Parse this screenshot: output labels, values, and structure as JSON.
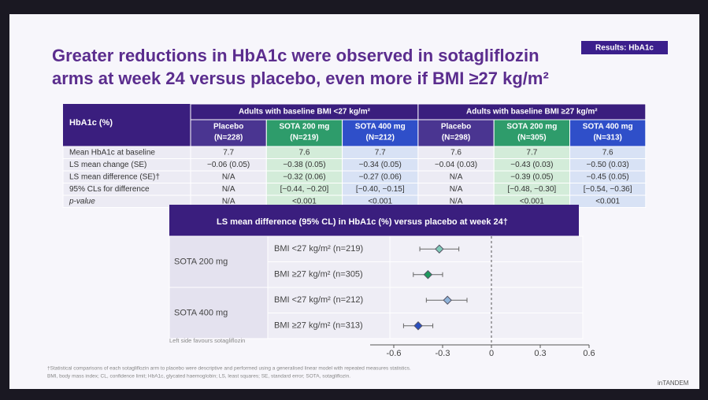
{
  "tag": "Results: HbA1c",
  "title": [
    "Greater reductions in HbA1c were observed in sotagliflozin",
    "arms at week 24 versus placebo, even more if BMI ≥27 kg/m²"
  ],
  "table": {
    "corner": "HbA1c (%)",
    "groups": [
      "Adults with baseline BMI <27 kg/m²",
      "Adults with baseline BMI ≥27 kg/m²"
    ],
    "columns": [
      [
        "Placebo",
        "(N=228)"
      ],
      [
        "SOTA 200 mg",
        "(N=219)"
      ],
      [
        "SOTA 400 mg",
        "(N=212)"
      ],
      [
        "Placebo",
        "(N=298)"
      ],
      [
        "SOTA 200 mg",
        "(N=305)"
      ],
      [
        "SOTA 400 mg",
        "(N=313)"
      ]
    ],
    "rows": [
      [
        "Mean HbA1c at baseline",
        "7.7",
        "7.6",
        "7.7",
        "7.6",
        "7.7",
        "7.6"
      ],
      [
        "LS mean change (SE)",
        "−0.06 (0.05)",
        "−0.38 (0.05)",
        "−0.34 (0.05)",
        "−0.04 (0.03)",
        "−0.43 (0.03)",
        "−0.50 (0.03)"
      ],
      [
        "LS mean difference (SE)†",
        "N/A",
        "−0.32 (0.06)",
        "−0.27 (0.06)",
        "N/A",
        "−0.39 (0.05)",
        "−0.45 (0.05)"
      ],
      [
        "95% CLs for difference",
        "N/A",
        "[−0.44, −0.20]",
        "[−0.40, −0.15]",
        "N/A",
        "[−0.48, −0.30]",
        "[−0.54, −0.36]"
      ],
      [
        "p-value",
        "N/A",
        "<0.001",
        "<0.001",
        "N/A",
        "<0.001",
        "<0.001"
      ]
    ]
  },
  "chart_data": {
    "type": "forest",
    "title": "LS mean difference (95% CL) in HbA1c (%) versus placebo at week 24†",
    "groups": [
      {
        "name": "SOTA 200 mg",
        "rows": [
          {
            "label": "BMI <27 kg/m² (n=219)",
            "value": -0.32,
            "ci": [
              -0.44,
              -0.2
            ],
            "color": "#7fc9b6"
          },
          {
            "label": "BMI ≥27 kg/m² (n=305)",
            "value": -0.39,
            "ci": [
              -0.48,
              -0.3
            ],
            "color": "#1f9a5e"
          }
        ]
      },
      {
        "name": "SOTA 400 mg",
        "rows": [
          {
            "label": "BMI <27 kg/m² (n=212)",
            "value": -0.27,
            "ci": [
              -0.4,
              -0.15
            ],
            "color": "#8fb3d9"
          },
          {
            "label": "BMI ≥27 kg/m² (n=313)",
            "value": -0.45,
            "ci": [
              -0.54,
              -0.36
            ],
            "color": "#2a4fc0"
          }
        ]
      }
    ],
    "xlim": [
      -0.6,
      0.6
    ],
    "xticks": [
      -0.6,
      -0.3,
      0,
      0.3,
      0.6
    ],
    "annotation": "Left side favours sotagliflozin"
  },
  "footnotes": [
    "†Statistical comparisons of each sotagliflozin arm to placebo were descriptive and performed using a generalised linear model with repeated measures statistics.",
    "BMI, body mass index; CL, confidence limit; HbA1c, glycated haemoglobin; LS, least squares; SE, standard error; SOTA, sotagliflozin."
  ],
  "logo": "inTANDEM"
}
